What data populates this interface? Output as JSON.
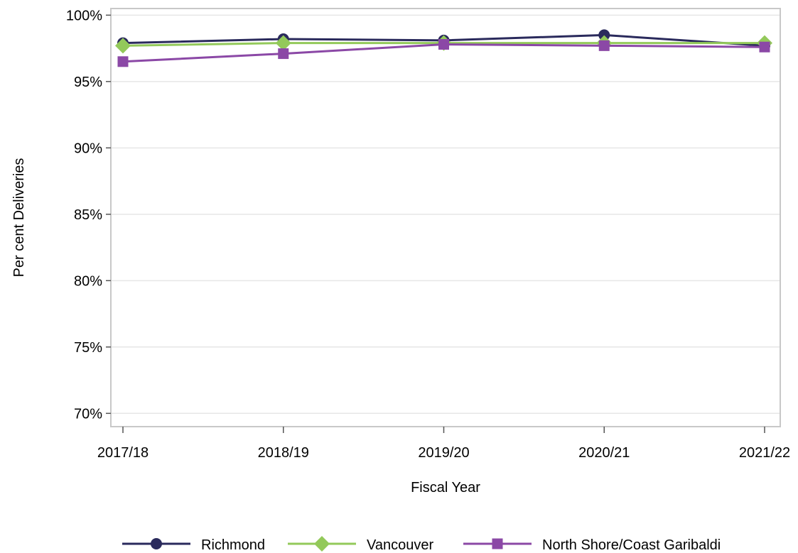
{
  "chart_data": {
    "type": "line",
    "title": "",
    "xlabel": "Fiscal Year",
    "ylabel": "Per cent Deliveries",
    "categories": [
      "2017/18",
      "2018/19",
      "2019/20",
      "2020/21",
      "2021/22"
    ],
    "ylim": [
      69,
      100.5
    ],
    "yticks": [
      70,
      75,
      80,
      85,
      90,
      95,
      100
    ],
    "ytick_labels": [
      "70%",
      "75%",
      "80%",
      "85%",
      "90%",
      "95%",
      "100%"
    ],
    "grid": "horizontal",
    "legend_position": "bottom",
    "series": [
      {
        "name": "Richmond",
        "values": [
          97.9,
          98.2,
          98.1,
          98.5,
          97.7
        ],
        "color": "#2a2a5c",
        "marker": "circle"
      },
      {
        "name": "Vancouver",
        "values": [
          97.7,
          97.9,
          97.9,
          97.9,
          97.9
        ],
        "color": "#93c95a",
        "marker": "diamond"
      },
      {
        "name": "North Shore/Coast Garibaldi",
        "values": [
          96.5,
          97.1,
          97.8,
          97.7,
          97.6
        ],
        "color": "#8b48a6",
        "marker": "square"
      }
    ]
  }
}
